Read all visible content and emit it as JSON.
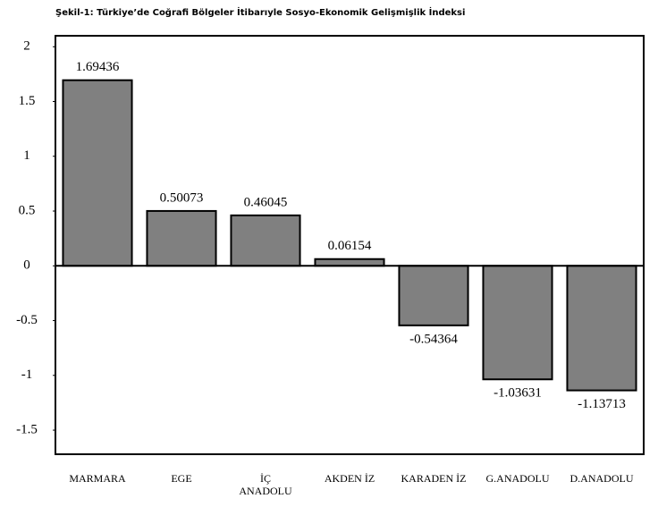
{
  "chart_data": {
    "type": "bar",
    "title": "Şekil-1: Türkiye’de Coğrafi Bölgeler İtibarıyle Sosyo-Ekonomik  Gelişmişlik İndeksi",
    "categories": [
      "MARMARA",
      "EGE",
      "İÇ\nANADOLU",
      "AKDEN İZ",
      "KARADEN İZ",
      "G.ANADOLU",
      "D.ANADOLU"
    ],
    "values": [
      1.69436,
      0.50073,
      0.46045,
      0.06154,
      -0.54364,
      -1.03631,
      -1.13713
    ],
    "color": "#808080",
    "ylim": [
      -1.72,
      2.1
    ],
    "yticks": [
      2,
      1.5,
      1,
      0.5,
      0,
      -0.5,
      -1,
      -1.5
    ],
    "grid": false
  }
}
